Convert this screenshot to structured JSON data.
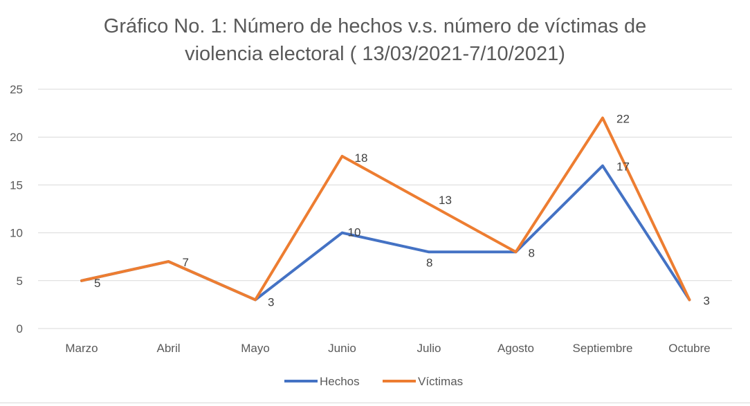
{
  "chart_data": {
    "type": "line",
    "title_line1": "Gráfico No. 1: Número de hechos v.s. número de víctimas de",
    "title_line2": "violencia electoral ( 13/03/2021-7/10/2021)",
    "categories": [
      "Marzo",
      "Abril",
      "Mayo",
      "Junio",
      "Julio",
      "Agosto",
      "Septiembre",
      "Octubre"
    ],
    "series": [
      {
        "name": "Hechos",
        "color": "#4472C4",
        "values": [
          5,
          7,
          3,
          10,
          8,
          8,
          17,
          3
        ],
        "labels": [
          null,
          null,
          null,
          "10",
          "8",
          null,
          "17",
          null
        ]
      },
      {
        "name": "Víctimas",
        "color": "#ED7D31",
        "values": [
          5,
          7,
          3,
          18,
          13,
          8,
          22,
          3
        ],
        "labels": [
          "5",
          "7",
          "3",
          "18",
          "13",
          "8",
          "22",
          "3"
        ]
      }
    ],
    "ylim": [
      0,
      25
    ],
    "yticks": [
      "0",
      "5",
      "10",
      "15",
      "20",
      "25"
    ],
    "grid": true,
    "legend_position": "bottom"
  }
}
